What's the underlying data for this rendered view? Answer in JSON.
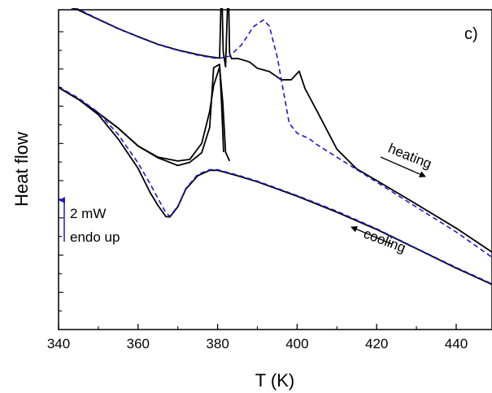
{
  "chart_data": {
    "type": "line",
    "panel_label": "c)",
    "xlabel": "T (K)",
    "ylabel": "Heat flow",
    "xlim": [
      340,
      449
    ],
    "ylim": [
      0,
      10
    ],
    "x_ticks": [
      340,
      360,
      380,
      400,
      420,
      440
    ],
    "x_tick_labels": [
      "340",
      "360",
      "380",
      "400",
      "420",
      "440"
    ],
    "y_tick_labels_shown": false,
    "y_minor_ticks_count": 16,
    "series": [
      {
        "line_style": "solid",
        "color": "#000000",
        "x": [
          340,
          345,
          350,
          355,
          360,
          365,
          370,
          375,
          378,
          380.5,
          381,
          381.4,
          382,
          382.7,
          383,
          383.5,
          385,
          388,
          390,
          393,
          396,
          398.5,
          400.5,
          402,
          405,
          410,
          415,
          420,
          430,
          440,
          449
        ],
        "y": [
          10.2,
          9.99,
          9.7,
          9.41,
          9.16,
          8.92,
          8.74,
          8.6,
          8.53,
          8.49,
          10.95,
          8.7,
          8.22,
          10.95,
          8.65,
          8.47,
          8.48,
          8.37,
          8.17,
          8.07,
          7.81,
          7.81,
          8.08,
          7.53,
          6.83,
          5.64,
          5.02,
          4.66,
          3.92,
          3.17,
          2.42
        ]
      },
      {
        "line_style": "dashed",
        "color": "#1a1acc",
        "x": [
          340,
          345,
          350,
          355,
          360,
          365,
          370,
          375,
          380,
          383,
          386,
          389,
          391.5,
          393,
          395,
          398,
          400,
          403,
          405,
          410,
          415,
          420,
          430,
          440,
          449
        ],
        "y": [
          10.24,
          10.02,
          9.71,
          9.42,
          9.15,
          8.91,
          8.73,
          8.58,
          8.47,
          8.55,
          8.9,
          9.47,
          9.68,
          9.49,
          8.52,
          6.45,
          6.14,
          5.97,
          5.78,
          5.39,
          5.0,
          4.61,
          3.83,
          3.05,
          2.26
        ]
      },
      {
        "line_style": "solid",
        "color": "#000000",
        "x": [
          340,
          345,
          350,
          355,
          360,
          365,
          370,
          373,
          376,
          378,
          379,
          380.5,
          381.3,
          382,
          383
        ],
        "y": [
          7.57,
          7.2,
          6.77,
          6.3,
          5.74,
          5.39,
          5.27,
          5.32,
          5.82,
          6.82,
          7.63,
          8.21,
          7.1,
          5.55,
          5.27
        ]
      },
      {
        "line_style": "solid",
        "color": "#000000",
        "x": [
          340,
          345,
          350,
          355,
          360,
          365,
          370,
          373,
          376,
          378,
          379,
          380.5,
          381,
          381.5
        ],
        "y": [
          7.57,
          7.2,
          6.77,
          6.3,
          5.74,
          5.37,
          5.13,
          5.23,
          5.53,
          6.32,
          8.19,
          8.29,
          7.05,
          5.55
        ]
      },
      {
        "line_style": "solid",
        "color": "#000000",
        "x": [
          340,
          345,
          350,
          355,
          360,
          363,
          365,
          367,
          368,
          370,
          372,
          375,
          378,
          380,
          385,
          390,
          400,
          410,
          420,
          430,
          440,
          449
        ],
        "y": [
          7.57,
          7.2,
          6.72,
          5.96,
          5.04,
          4.29,
          3.88,
          3.53,
          3.52,
          3.84,
          4.39,
          4.81,
          4.98,
          4.98,
          4.81,
          4.62,
          4.17,
          3.67,
          3.13,
          2.53,
          1.92,
          1.41
        ]
      },
      {
        "line_style": "dashed",
        "color": "#1a1acc",
        "x": [
          340,
          345,
          350,
          355,
          360,
          363,
          365,
          367,
          368,
          370,
          372,
          375,
          378,
          380,
          385,
          390,
          400,
          410,
          420,
          430,
          440,
          449
        ],
        "y": [
          7.59,
          7.24,
          6.79,
          6.1,
          5.21,
          4.56,
          4.1,
          3.65,
          3.54,
          3.86,
          4.41,
          4.85,
          5.0,
          5.0,
          4.83,
          4.64,
          4.19,
          3.7,
          3.15,
          2.54,
          1.94,
          1.43
        ]
      }
    ],
    "annotations": {
      "heating": "heating",
      "cooling": "cooling",
      "scale_value": "2 mW",
      "scale_note": "endo up"
    },
    "colors": {
      "axis": "#000000",
      "solid_line": "#000000",
      "dashed_line": "#1a1acc",
      "scale_arrow": "#1a1acc"
    }
  }
}
